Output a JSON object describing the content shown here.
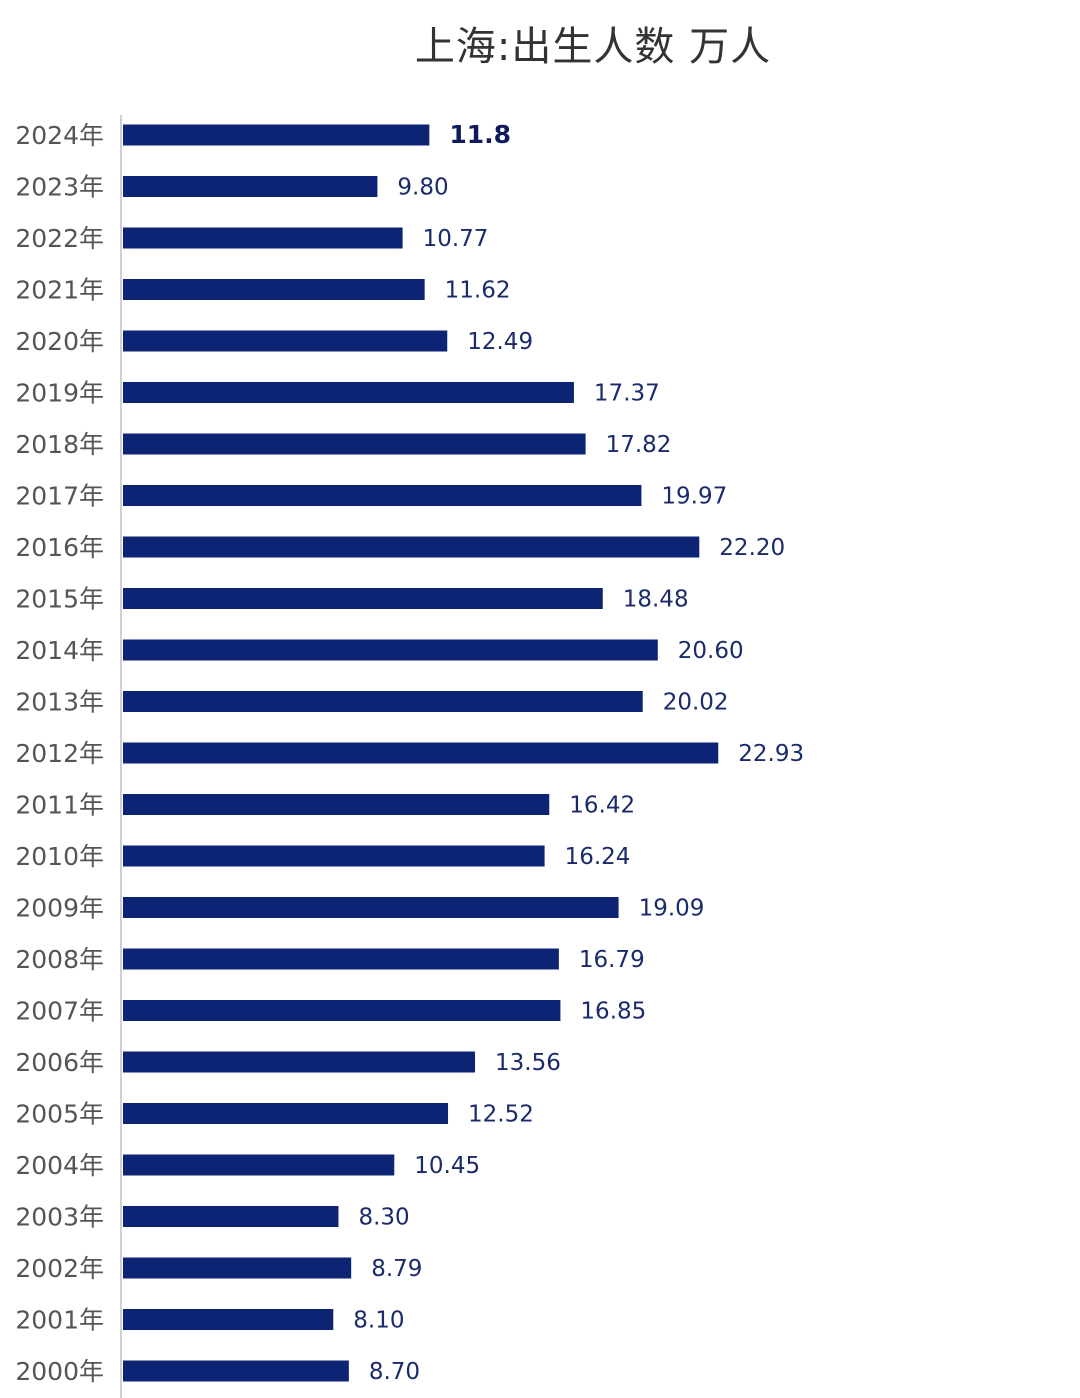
{
  "chart_data": {
    "type": "bar",
    "orientation": "horizontal",
    "title": "上海:出生人数 万人",
    "categories": [
      "2024年",
      "2023年",
      "2022年",
      "2021年",
      "2020年",
      "2019年",
      "2018年",
      "2017年",
      "2016年",
      "2015年",
      "2014年",
      "2013年",
      "2012年",
      "2011年",
      "2010年",
      "2009年",
      "2008年",
      "2007年",
      "2006年",
      "2005年",
      "2004年",
      "2003年",
      "2002年",
      "2001年",
      "2000年"
    ],
    "values": [
      11.8,
      9.8,
      10.77,
      11.62,
      12.49,
      17.37,
      17.82,
      19.97,
      22.2,
      18.48,
      20.6,
      20.02,
      22.93,
      16.42,
      16.24,
      19.09,
      16.79,
      16.85,
      13.56,
      12.52,
      10.45,
      8.3,
      8.79,
      8.1,
      8.7
    ],
    "value_labels": [
      "11.8",
      "9.80",
      "10.77",
      "11.62",
      "12.49",
      "17.37",
      "17.82",
      "19.97",
      "22.20",
      "18.48",
      "20.60",
      "20.02",
      "22.93",
      "16.42",
      "16.24",
      "19.09",
      "16.79",
      "16.85",
      "13.56",
      "12.52",
      "10.45",
      "8.30",
      "8.79",
      "8.10",
      "8.70"
    ],
    "highlight_index": 0,
    "bar_color": "#0d2373",
    "axis_color": "#d0d0d0",
    "xlim": [
      0,
      25
    ],
    "grid": false,
    "legend": "none"
  }
}
